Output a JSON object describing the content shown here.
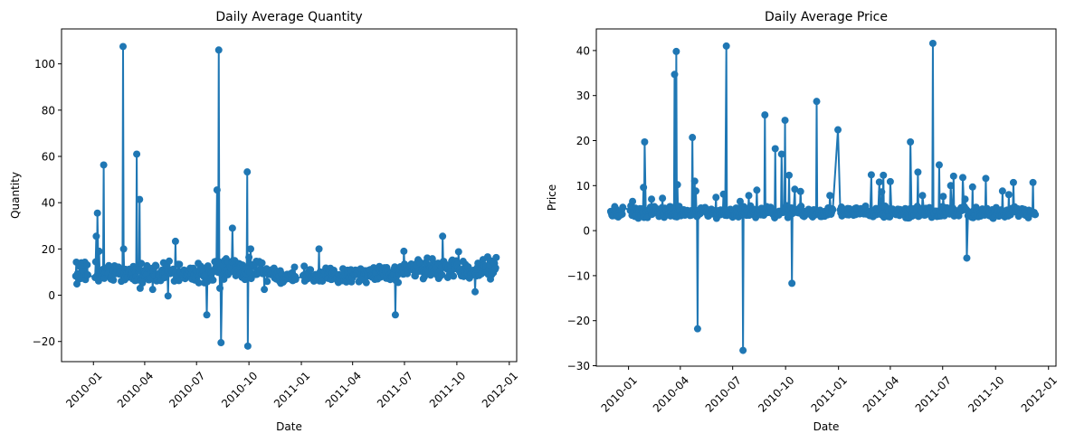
{
  "chart_data": [
    {
      "type": "line",
      "marker": "circle",
      "title": "Daily Average Quantity",
      "xlabel": "Date",
      "ylabel": "Quantity",
      "color": "#1f77b4",
      "xlim": [
        "2009-11-06",
        "2012-01-14"
      ],
      "ylim": [
        -28.7,
        115.1
      ],
      "x_ticks": [
        {
          "date": "2010-01-01",
          "label": "2010-01"
        },
        {
          "date": "2010-04-01",
          "label": "2010-04"
        },
        {
          "date": "2010-07-01",
          "label": "2010-07"
        },
        {
          "date": "2010-10-01",
          "label": "2010-10"
        },
        {
          "date": "2011-01-01",
          "label": "2011-01"
        },
        {
          "date": "2011-04-01",
          "label": "2011-04"
        },
        {
          "date": "2011-07-01",
          "label": "2011-07"
        },
        {
          "date": "2011-10-01",
          "label": "2011-10"
        },
        {
          "date": "2012-01-01",
          "label": "2012-01"
        }
      ],
      "y_ticks": [
        {
          "value": -20,
          "label": "−20"
        },
        {
          "value": 0,
          "label": "0"
        },
        {
          "value": 20,
          "label": "20"
        },
        {
          "value": 40,
          "label": "40"
        },
        {
          "value": 60,
          "label": "60"
        },
        {
          "value": 80,
          "label": "80"
        },
        {
          "value": 100,
          "label": "100"
        }
      ],
      "base_series": {
        "start": "2009-12-01",
        "end": "2011-12-09",
        "segments": [
          {
            "from": "2009-12-01",
            "to": "2010-07-31",
            "low": 4,
            "high": 15
          },
          {
            "from": "2010-08-01",
            "to": "2010-10-31",
            "low": 6,
            "high": 17
          },
          {
            "from": "2010-11-01",
            "to": "2011-06-30",
            "low": 5,
            "high": 13
          },
          {
            "from": "2011-07-01",
            "to": "2011-12-09",
            "low": 6,
            "high": 17
          }
        ]
      },
      "spikes": [
        {
          "date": "2010-01-06",
          "value": 25.5
        },
        {
          "date": "2010-01-08",
          "value": 35.5
        },
        {
          "date": "2010-01-11",
          "value": 19
        },
        {
          "date": "2010-01-19",
          "value": 56.3
        },
        {
          "date": "2010-02-22",
          "value": 107.5
        },
        {
          "date": "2010-02-23",
          "value": 20
        },
        {
          "date": "2010-03-18",
          "value": 61
        },
        {
          "date": "2010-03-23",
          "value": 41.4
        },
        {
          "date": "2010-03-24",
          "value": 3
        },
        {
          "date": "2010-04-15",
          "value": 2.5
        },
        {
          "date": "2010-05-12",
          "value": -0.3
        },
        {
          "date": "2010-05-25",
          "value": 23.3
        },
        {
          "date": "2010-07-19",
          "value": -8.5
        },
        {
          "date": "2010-08-06",
          "value": 45.5
        },
        {
          "date": "2010-08-09",
          "value": 106
        },
        {
          "date": "2010-08-11",
          "value": 3
        },
        {
          "date": "2010-08-13",
          "value": -20.5
        },
        {
          "date": "2010-09-02",
          "value": 29
        },
        {
          "date": "2010-09-28",
          "value": 53.3
        },
        {
          "date": "2010-09-29",
          "value": -22
        },
        {
          "date": "2010-10-04",
          "value": 20
        },
        {
          "date": "2010-10-28",
          "value": 2.5
        },
        {
          "date": "2011-02-01",
          "value": 20
        },
        {
          "date": "2011-06-15",
          "value": -8.5
        },
        {
          "date": "2011-06-30",
          "value": 19
        },
        {
          "date": "2011-09-06",
          "value": 25.5
        },
        {
          "date": "2011-10-04",
          "value": 18.8
        },
        {
          "date": "2011-11-02",
          "value": 1.5
        },
        {
          "date": "2011-12-09",
          "value": 16.3
        }
      ]
    },
    {
      "type": "line",
      "marker": "circle",
      "title": "Daily Average Price",
      "xlabel": "Date",
      "ylabel": "Price",
      "color": "#1f77b4",
      "xlim": [
        "2009-11-06",
        "2012-01-14"
      ],
      "ylim": [
        -30.1,
        44.8
      ],
      "x_ticks": [
        {
          "date": "2010-01-01",
          "label": "2010-01"
        },
        {
          "date": "2010-04-01",
          "label": "2010-04"
        },
        {
          "date": "2010-07-01",
          "label": "2010-07"
        },
        {
          "date": "2010-10-01",
          "label": "2010-10"
        },
        {
          "date": "2011-01-01",
          "label": "2011-01"
        },
        {
          "date": "2011-04-01",
          "label": "2011-04"
        },
        {
          "date": "2011-07-01",
          "label": "2011-07"
        },
        {
          "date": "2011-10-01",
          "label": "2011-10"
        },
        {
          "date": "2012-01-01",
          "label": "2012-01"
        }
      ],
      "y_ticks": [
        {
          "value": -30,
          "label": "−30"
        },
        {
          "value": -20,
          "label": "−20"
        },
        {
          "value": -10,
          "label": "−10"
        },
        {
          "value": 0,
          "label": "0"
        },
        {
          "value": 10,
          "label": "10"
        },
        {
          "value": 20,
          "label": "20"
        },
        {
          "value": 30,
          "label": "30"
        },
        {
          "value": 40,
          "label": "40"
        }
      ],
      "base_series": {
        "start": "2009-12-01",
        "end": "2011-12-09",
        "segments": [
          {
            "from": "2009-12-01",
            "to": "2011-12-09",
            "low": 2.6,
            "high": 5.6
          }
        ]
      },
      "spikes": [
        {
          "date": "2010-01-08",
          "value": 6.5
        },
        {
          "date": "2010-01-27",
          "value": 9.6
        },
        {
          "date": "2010-01-29",
          "value": 19.7
        },
        {
          "date": "2010-02-10",
          "value": 7
        },
        {
          "date": "2010-03-01",
          "value": 7.2
        },
        {
          "date": "2010-03-22",
          "value": 34.7
        },
        {
          "date": "2010-03-25",
          "value": 39.8
        },
        {
          "date": "2010-03-27",
          "value": 10.2
        },
        {
          "date": "2010-04-22",
          "value": 20.7
        },
        {
          "date": "2010-04-26",
          "value": 11
        },
        {
          "date": "2010-04-28",
          "value": 8.8
        },
        {
          "date": "2010-05-01",
          "value": -21.8
        },
        {
          "date": "2010-06-02",
          "value": 7.4
        },
        {
          "date": "2010-06-15",
          "value": 8.1
        },
        {
          "date": "2010-06-20",
          "value": 41
        },
        {
          "date": "2010-07-14",
          "value": 6.5
        },
        {
          "date": "2010-07-19",
          "value": -26.6
        },
        {
          "date": "2010-07-29",
          "value": 7.8
        },
        {
          "date": "2010-08-12",
          "value": 9
        },
        {
          "date": "2010-08-26",
          "value": 25.7
        },
        {
          "date": "2010-09-13",
          "value": 18.2
        },
        {
          "date": "2010-09-24",
          "value": 17
        },
        {
          "date": "2010-09-30",
          "value": 24.5
        },
        {
          "date": "2010-10-07",
          "value": 12.3
        },
        {
          "date": "2010-10-12",
          "value": -11.7
        },
        {
          "date": "2010-10-17",
          "value": 9.2
        },
        {
          "date": "2010-10-27",
          "value": 8.7
        },
        {
          "date": "2010-11-24",
          "value": 28.7
        },
        {
          "date": "2010-12-17",
          "value": 7.8
        },
        {
          "date": "2010-12-31",
          "value": 22.4
        },
        {
          "date": "2011-02-27",
          "value": 12.4
        },
        {
          "date": "2011-03-13",
          "value": 10.8
        },
        {
          "date": "2011-03-17",
          "value": 8.6
        },
        {
          "date": "2011-03-20",
          "value": 12.3
        },
        {
          "date": "2011-04-01",
          "value": 10.9
        },
        {
          "date": "2011-05-06",
          "value": 19.7
        },
        {
          "date": "2011-05-19",
          "value": 13
        },
        {
          "date": "2011-05-27",
          "value": 7.8
        },
        {
          "date": "2011-06-14",
          "value": 41.6
        },
        {
          "date": "2011-06-25",
          "value": 14.6
        },
        {
          "date": "2011-07-02",
          "value": 7.6
        },
        {
          "date": "2011-07-15",
          "value": 10
        },
        {
          "date": "2011-07-20",
          "value": 12.1
        },
        {
          "date": "2011-08-05",
          "value": 11.8
        },
        {
          "date": "2011-08-09",
          "value": 7
        },
        {
          "date": "2011-08-12",
          "value": -6.1
        },
        {
          "date": "2011-08-22",
          "value": 9.7
        },
        {
          "date": "2011-09-14",
          "value": 11.6
        },
        {
          "date": "2011-10-13",
          "value": 8.8
        },
        {
          "date": "2011-10-24",
          "value": 8
        },
        {
          "date": "2011-11-01",
          "value": 10.7
        },
        {
          "date": "2011-12-05",
          "value": 10.7
        }
      ]
    }
  ]
}
